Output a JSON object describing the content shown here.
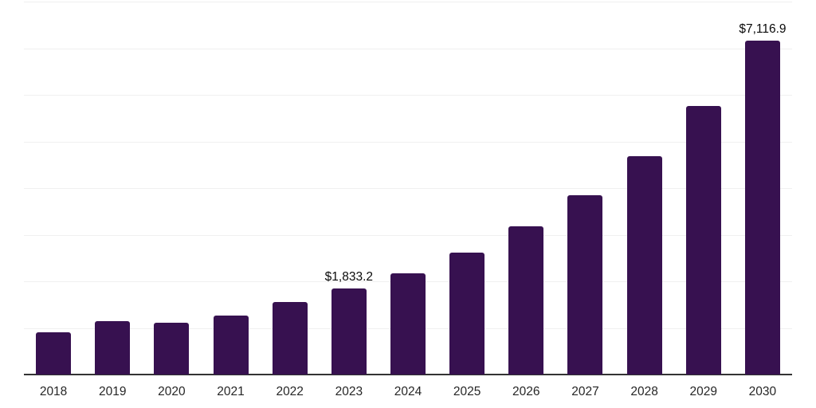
{
  "chart_data": {
    "type": "bar",
    "title": "",
    "xlabel": "",
    "ylabel": "",
    "categories": [
      "2018",
      "2019",
      "2020",
      "2021",
      "2022",
      "2023",
      "2024",
      "2025",
      "2026",
      "2027",
      "2028",
      "2029",
      "2030"
    ],
    "values": [
      900,
      1140,
      1105,
      1260,
      1545,
      1833.2,
      2160,
      2600,
      3160,
      3820,
      4655,
      5725,
      7116.9
    ],
    "data_labels": {
      "2023": "$1,833.2",
      "2030": "$7,116.9"
    },
    "ylim": [
      0,
      7950
    ],
    "grid_divisions": 8,
    "grid": "horizontal",
    "legend": "none",
    "colors": {
      "bar": "#371150",
      "grid": "#f0f0f0",
      "axis": "#333333",
      "tick_label": "#262626",
      "data_label": "#0a0a0a",
      "background": "#ffffff"
    }
  }
}
